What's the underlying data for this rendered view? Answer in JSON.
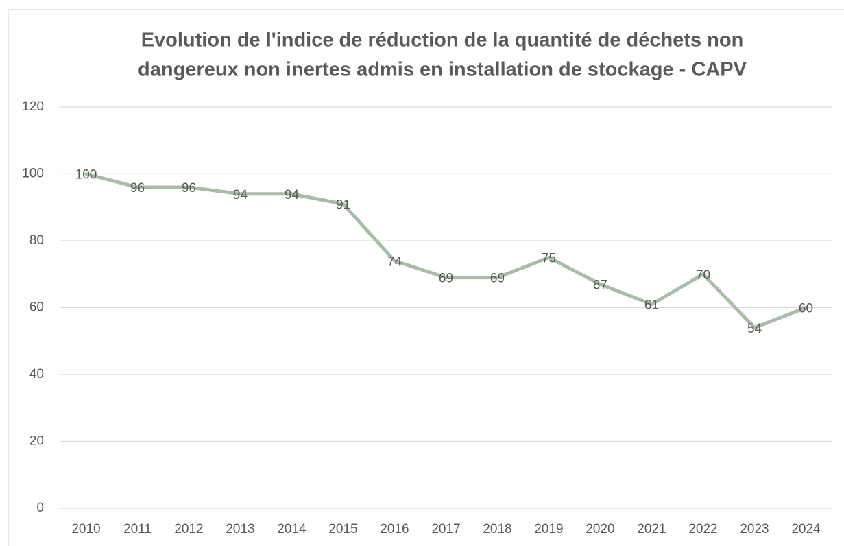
{
  "chart_data": {
    "type": "line",
    "title": [
      "Evolution de l'indice de réduction de la quantité de déchets non",
      "dangereux non inertes admis en installation de stockage - CAPV"
    ],
    "categories": [
      "2010",
      "2011",
      "2012",
      "2013",
      "2014",
      "2015",
      "2016",
      "2017",
      "2018",
      "2019",
      "2020",
      "2021",
      "2022",
      "2023",
      "2024"
    ],
    "series": [
      {
        "color": "#a8bda8",
        "values": [
          100,
          96,
          96,
          94,
          94,
          91,
          74,
          69,
          69,
          75,
          67,
          61,
          70,
          54,
          60
        ]
      }
    ],
    "ylim": [
      0,
      120
    ],
    "yticks": [
      0,
      20,
      40,
      60,
      80,
      100,
      120
    ],
    "grid": true
  }
}
